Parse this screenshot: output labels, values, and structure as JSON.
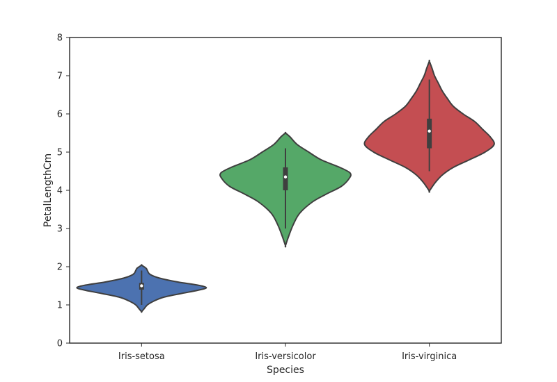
{
  "chart_data": {
    "type": "violin",
    "title": "",
    "xlabel": "Species",
    "ylabel": "PetalLengthCm",
    "ylim": [
      0,
      8
    ],
    "yticks": [
      0,
      1,
      2,
      3,
      4,
      5,
      6,
      7,
      8
    ],
    "grid": false,
    "legend": "none",
    "categories": [
      "Iris-setosa",
      "Iris-versicolor",
      "Iris-virginica"
    ],
    "series": [
      {
        "category": "Iris-setosa",
        "color": "#4c72b0",
        "min": 1.0,
        "q1": 1.4,
        "median": 1.5,
        "q3": 1.575,
        "max": 1.9,
        "kde_low": 0.82,
        "kde_high": 2.04,
        "density": [
          [
            0.82,
            0.0
          ],
          [
            0.9,
            0.04
          ],
          [
            1.0,
            0.09
          ],
          [
            1.1,
            0.19
          ],
          [
            1.2,
            0.34
          ],
          [
            1.3,
            0.62
          ],
          [
            1.38,
            0.86
          ],
          [
            1.45,
            1.0
          ],
          [
            1.52,
            0.86
          ],
          [
            1.6,
            0.56
          ],
          [
            1.7,
            0.28
          ],
          [
            1.8,
            0.13
          ],
          [
            1.9,
            0.09
          ],
          [
            1.96,
            0.07
          ],
          [
            2.04,
            0.0
          ]
        ]
      },
      {
        "category": "Iris-versicolor",
        "color": "#55a868",
        "min": 3.0,
        "q1": 4.0,
        "median": 4.35,
        "q3": 4.6,
        "max": 5.1,
        "kde_low": 2.55,
        "kde_high": 5.5,
        "density": [
          [
            2.55,
            0.0
          ],
          [
            2.8,
            0.05
          ],
          [
            3.1,
            0.12
          ],
          [
            3.4,
            0.22
          ],
          [
            3.7,
            0.42
          ],
          [
            3.9,
            0.63
          ],
          [
            4.1,
            0.86
          ],
          [
            4.3,
            0.98
          ],
          [
            4.45,
            1.0
          ],
          [
            4.6,
            0.84
          ],
          [
            4.8,
            0.55
          ],
          [
            5.0,
            0.36
          ],
          [
            5.2,
            0.18
          ],
          [
            5.4,
            0.07
          ],
          [
            5.5,
            0.0
          ]
        ]
      },
      {
        "category": "Iris-virginica",
        "color": "#c44e52",
        "min": 4.5,
        "q1": 5.1,
        "median": 5.55,
        "q3": 5.875,
        "max": 6.9,
        "kde_low": 3.98,
        "kde_high": 7.38,
        "density": [
          [
            3.98,
            0.0
          ],
          [
            4.2,
            0.09
          ],
          [
            4.4,
            0.2
          ],
          [
            4.6,
            0.37
          ],
          [
            4.8,
            0.62
          ],
          [
            5.0,
            0.86
          ],
          [
            5.2,
            1.0
          ],
          [
            5.4,
            0.94
          ],
          [
            5.6,
            0.82
          ],
          [
            5.8,
            0.7
          ],
          [
            6.0,
            0.52
          ],
          [
            6.2,
            0.37
          ],
          [
            6.4,
            0.28
          ],
          [
            6.6,
            0.2
          ],
          [
            6.8,
            0.14
          ],
          [
            7.0,
            0.08
          ],
          [
            7.2,
            0.04
          ],
          [
            7.38,
            0.0
          ]
        ]
      }
    ]
  }
}
